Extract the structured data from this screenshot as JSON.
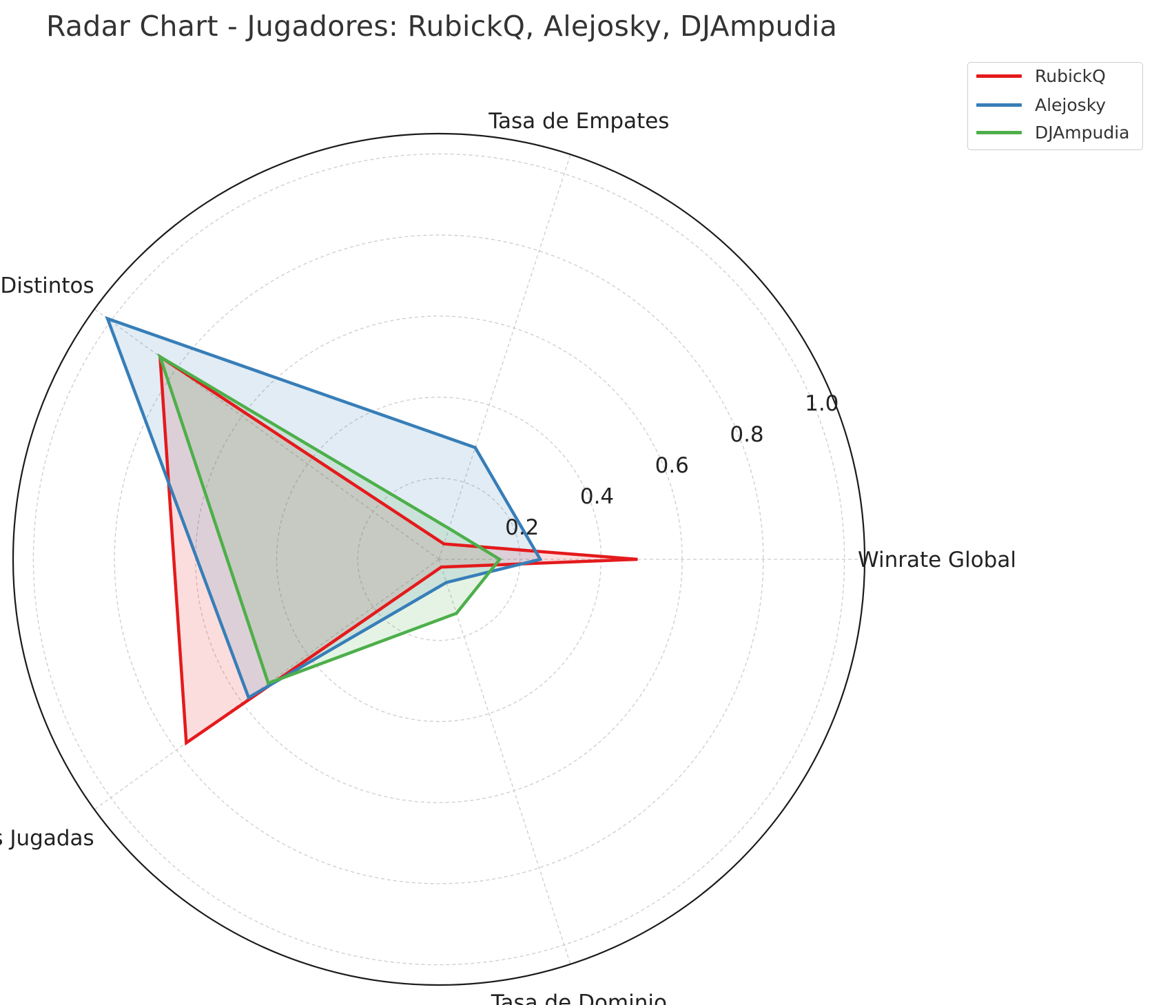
{
  "chart_data": {
    "type": "radar",
    "title": "Radar Chart - Jugadores: RubickQ, Alejosky, DJAmpudia",
    "axes": [
      "Winrate Global",
      "Tasa de Empates",
      "Rivales Distintos",
      "Partidas Jugadas",
      "Tasa de Dominio"
    ],
    "r_ticks": [
      0.2,
      0.4,
      0.6,
      0.8,
      1.0
    ],
    "r_tick_labels": [
      "0.2",
      "0.4",
      "0.6",
      "0.8",
      "1.0"
    ],
    "rlim": [
      0,
      1.05
    ],
    "grid": true,
    "legend_position": "top-right outside",
    "series": [
      {
        "name": "RubickQ",
        "color": "#e41a1c",
        "values": [
          0.49,
          0.04,
          0.85,
          0.77,
          0.02
        ]
      },
      {
        "name": "Alejosky",
        "color": "#377eb8",
        "values": [
          0.25,
          0.29,
          1.01,
          0.58,
          0.06
        ]
      },
      {
        "name": "DJAmpudia",
        "color": "#4daf4a",
        "values": [
          0.15,
          0.08,
          0.85,
          0.52,
          0.14
        ]
      }
    ]
  }
}
